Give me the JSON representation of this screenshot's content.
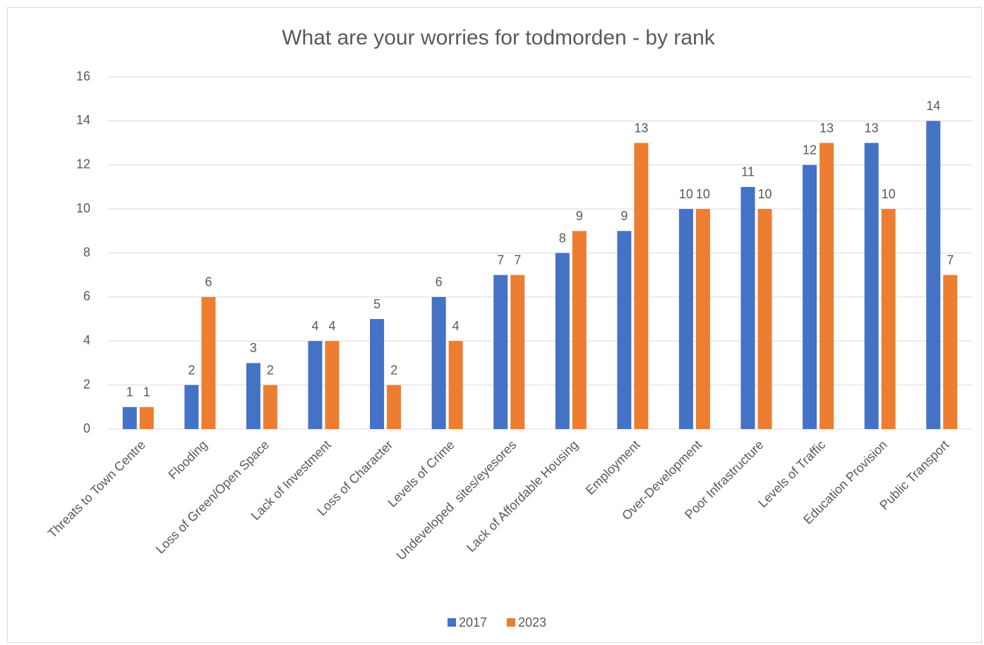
{
  "chart_data": {
    "type": "bar",
    "title": "What are your worries for todmorden - by rank",
    "categories": [
      "Threats to Town Centre",
      "Flooding",
      "Loss of Green/Open Space",
      "Lack of Investment",
      "Loss of Character",
      "Levels of Crime",
      "Undeveloped  sites/eyesores",
      "Lack of Affordable Housing",
      "Employment",
      "Over-Development",
      "Poor Infrastructure",
      "Levels of Traffic",
      "Education Provision",
      "Public Transport"
    ],
    "series": [
      {
        "name": "2017",
        "color": "#4472c4",
        "values": [
          1,
          2,
          3,
          4,
          5,
          6,
          7,
          8,
          9,
          10,
          11,
          12,
          13,
          14
        ]
      },
      {
        "name": "2023",
        "color": "#ed7d31",
        "values": [
          1,
          6,
          2,
          4,
          2,
          4,
          7,
          9,
          13,
          10,
          10,
          13,
          10,
          7
        ]
      }
    ],
    "ylim": [
      0,
      16
    ],
    "yticks": [
      0,
      2,
      4,
      6,
      8,
      10,
      12,
      14,
      16
    ],
    "grid": true,
    "legend": "bottom"
  }
}
